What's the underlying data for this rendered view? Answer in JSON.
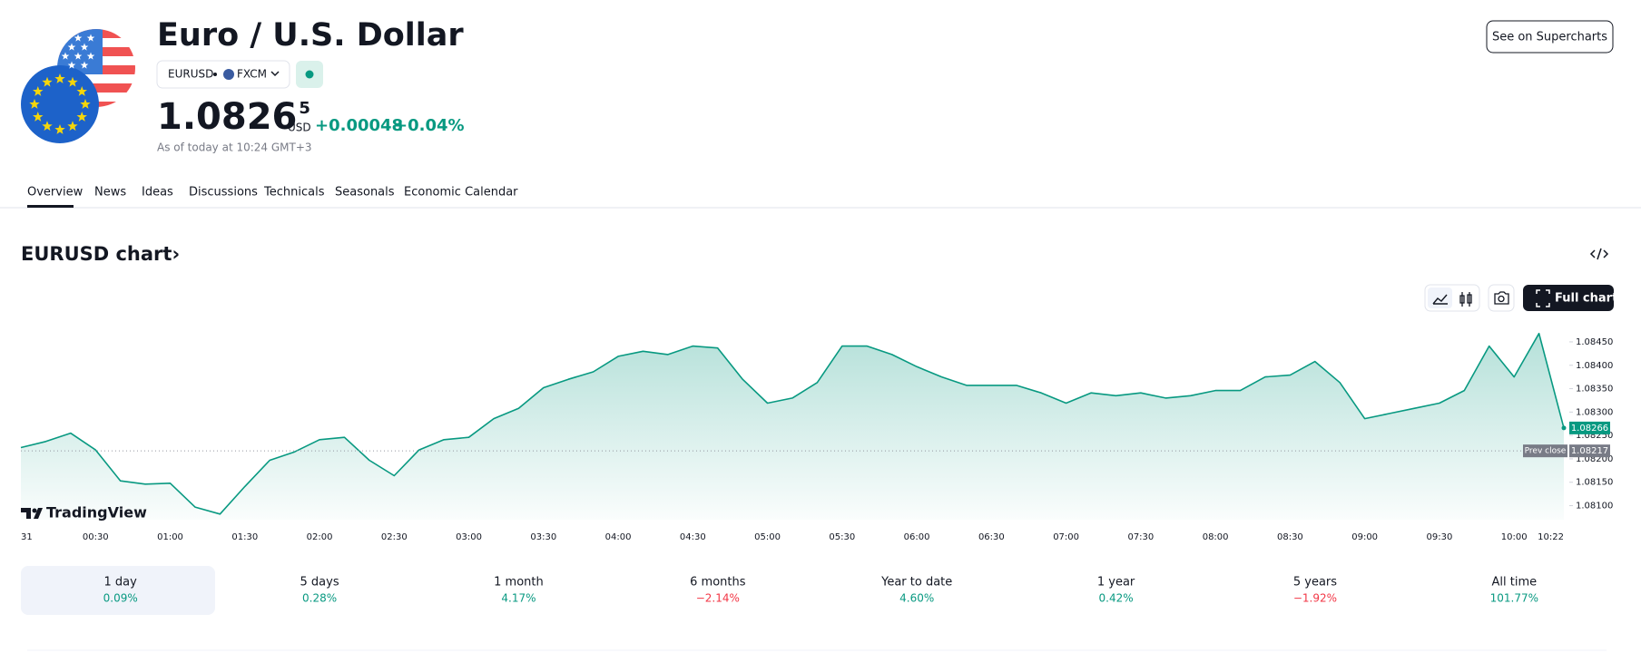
{
  "header": {
    "title": "Euro / U.S. Dollar",
    "symbol": "EURUSD",
    "exchange": "FXCM",
    "price": "1.0826",
    "price_sup": "5",
    "currency": "USD",
    "change": "+0.00048",
    "change_pct": "+0.04%",
    "as_of": "As of today at 10:24 GMT+3",
    "button": "See on Supercharts"
  },
  "tabs": [
    "Overview",
    "News",
    "Ideas",
    "Discussions",
    "Technicals",
    "Seasonals",
    "Economic Calendar"
  ],
  "chart_title": "EURUSD chart›",
  "full_chart": "Full chart",
  "brand": "TradingView",
  "chart_data": {
    "type": "line",
    "color": "#089981",
    "categories": [
      "31",
      null,
      null,
      "00:30",
      null,
      null,
      "01:00",
      null,
      null,
      "01:30",
      null,
      null,
      "02:00",
      null,
      null,
      "02:30",
      null,
      null,
      "03:00",
      null,
      null,
      "03:30",
      null,
      null,
      "04:00",
      null,
      null,
      "04:30",
      null,
      null,
      "05:00",
      null,
      null,
      "05:30",
      null,
      null,
      "06:00",
      null,
      null,
      "06:30",
      null,
      null,
      "07:00",
      null,
      null,
      "07:30",
      null,
      null,
      "08:00",
      null,
      null,
      "08:30",
      null,
      null,
      "09:00",
      null,
      null,
      "09:30",
      null,
      null,
      "10:00",
      null,
      "10:22"
    ],
    "values": [
      1.08224,
      1.08237,
      1.08255,
      1.08219,
      1.08153,
      1.08146,
      1.08148,
      1.08097,
      1.08082,
      1.08141,
      1.08197,
      1.08215,
      1.08241,
      1.08246,
      1.08197,
      1.08164,
      1.08219,
      1.08241,
      1.08246,
      1.08286,
      1.08308,
      1.08352,
      1.0837,
      1.08386,
      1.08419,
      1.0843,
      1.08423,
      1.08441,
      1.08437,
      1.0837,
      1.08319,
      1.0833,
      1.08363,
      1.08441,
      1.08441,
      1.08423,
      1.08397,
      1.08375,
      1.08357,
      1.08357,
      1.08357,
      1.08341,
      1.08319,
      1.08341,
      1.08335,
      1.08341,
      1.0833,
      1.08335,
      1.08346,
      1.08346,
      1.08375,
      1.08379,
      1.08408,
      1.08363,
      1.08286,
      1.08297,
      1.08308,
      1.08319,
      1.08346,
      1.08441,
      1.08375,
      1.08468,
      1.08266
    ],
    "ylim": [
      1.0807,
      1.0851
    ],
    "yticks": [
      {
        "value": 1.081,
        "label": "1.08100"
      },
      {
        "value": 1.0815,
        "label": "1.08150"
      },
      {
        "value": 1.082,
        "label": "1.08200"
      },
      {
        "value": 1.0825,
        "label": "1.08250"
      },
      {
        "value": 1.083,
        "label": "1.08300"
      },
      {
        "value": 1.0835,
        "label": "1.08350"
      },
      {
        "value": 1.084,
        "label": "1.08400"
      },
      {
        "value": 1.0845,
        "label": "1.08450"
      }
    ],
    "last_price": {
      "value": 1.08266,
      "label": "1.08266"
    },
    "prev_close": {
      "name": "Prev close",
      "value": 1.08217,
      "label": "1.08217"
    }
  },
  "periods": [
    {
      "label": "1 day",
      "change": "0.09%",
      "color": "#089981"
    },
    {
      "label": "5 days",
      "change": "0.28%",
      "color": "#089981"
    },
    {
      "label": "1 month",
      "change": "4.17%",
      "color": "#089981"
    },
    {
      "label": "6 months",
      "change": "−2.14%",
      "color": "#f23645"
    },
    {
      "label": "Year to date",
      "change": "4.60%",
      "color": "#089981"
    },
    {
      "label": "1 year",
      "change": "0.42%",
      "color": "#089981"
    },
    {
      "label": "5 years",
      "change": "−1.92%",
      "color": "#f23645"
    },
    {
      "label": "All time",
      "change": "101.77%",
      "color": "#089981"
    }
  ]
}
